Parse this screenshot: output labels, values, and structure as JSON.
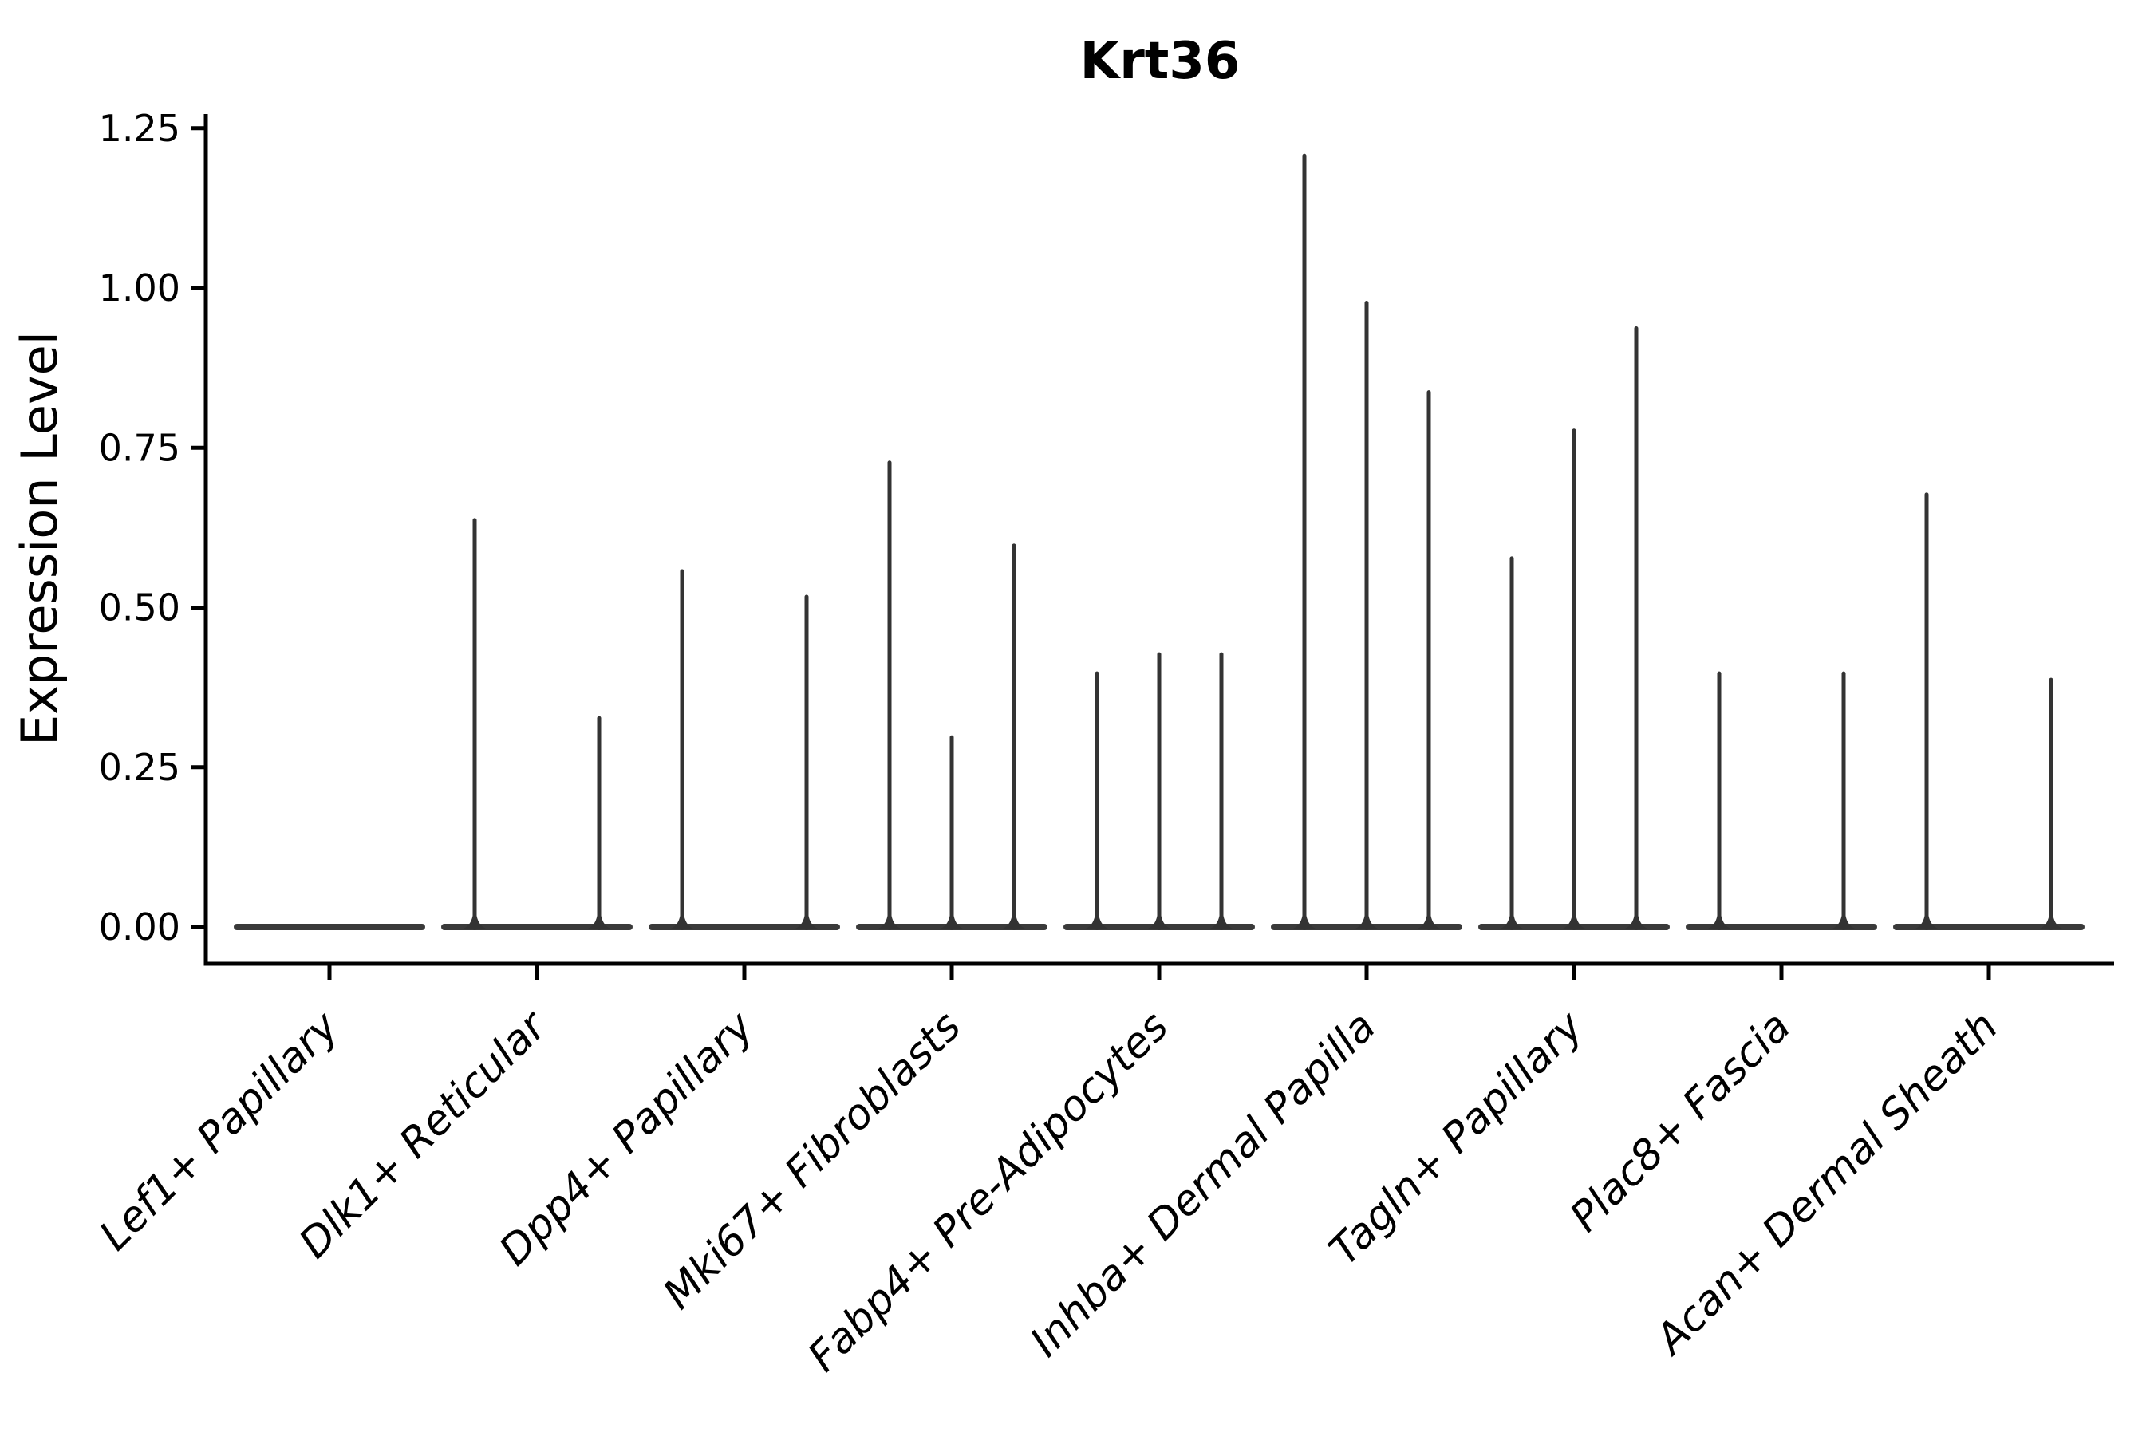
{
  "figure": {
    "title": "Krt36",
    "ylabel": "Expression Level"
  },
  "chart_data": {
    "type": "violin",
    "title": "Krt36",
    "xlabel": "",
    "ylabel": "Expression Level",
    "ylim": [
      0.0,
      1.25
    ],
    "ytick_values": [
      0.0,
      0.25,
      0.5,
      0.75,
      1.0,
      1.25
    ],
    "ytick_labels": [
      "0.00",
      "0.25",
      "0.50",
      "0.75",
      "1.00",
      "1.25"
    ],
    "grid": false,
    "legend": "none",
    "x_tick_label_rotation_deg": 45,
    "x_tick_label_style": "italic",
    "categories": [
      "Lef1+ Papillary",
      "Dlk1+ Reticular",
      "Dpp4+ Papillary",
      "Mki67+ Fibroblasts",
      "Fabp4+ Pre-Adipocytes",
      "Inhba+ Dermal Papilla",
      "Tagln+ Papillary",
      "Plac8+ Fascia",
      "Acan+ Dermal Sheath"
    ],
    "description": "Violin plot of Krt36 expression; each category shows a flat collapsed violin at 0 with up to three thin density spikes (sub-violin slots: -1 = left, 0 = center, 1 = right) reaching the listed peak expression level.",
    "violins": [
      {
        "category": "Lef1+ Papillary",
        "spikes": []
      },
      {
        "category": "Dlk1+ Reticular",
        "spikes": [
          {
            "slot": -1,
            "peak": 0.64
          },
          {
            "slot": 1,
            "peak": 0.33
          }
        ]
      },
      {
        "category": "Dpp4+ Papillary",
        "spikes": [
          {
            "slot": -1,
            "peak": 0.56
          },
          {
            "slot": 1,
            "peak": 0.52
          }
        ]
      },
      {
        "category": "Mki67+ Fibroblasts",
        "spikes": [
          {
            "slot": -1,
            "peak": 0.73
          },
          {
            "slot": 0,
            "peak": 0.3
          },
          {
            "slot": 1,
            "peak": 0.6
          }
        ]
      },
      {
        "category": "Fabp4+ Pre-Adipocytes",
        "spikes": [
          {
            "slot": -1,
            "peak": 0.4
          },
          {
            "slot": 0,
            "peak": 0.43
          },
          {
            "slot": 1,
            "peak": 0.43
          }
        ]
      },
      {
        "category": "Inhba+ Dermal Papilla",
        "spikes": [
          {
            "slot": -1,
            "peak": 1.21
          },
          {
            "slot": 0,
            "peak": 0.98
          },
          {
            "slot": 1,
            "peak": 0.84
          }
        ]
      },
      {
        "category": "Tagln+ Papillary",
        "spikes": [
          {
            "slot": -1,
            "peak": 0.58
          },
          {
            "slot": 0,
            "peak": 0.78
          },
          {
            "slot": 1,
            "peak": 0.94
          }
        ]
      },
      {
        "category": "Plac8+ Fascia",
        "spikes": [
          {
            "slot": -1,
            "peak": 0.4
          },
          {
            "slot": 1,
            "peak": 0.4
          }
        ]
      },
      {
        "category": "Acan+ Dermal Sheath",
        "spikes": [
          {
            "slot": -1,
            "peak": 0.68
          },
          {
            "slot": 1,
            "peak": 0.39
          }
        ]
      }
    ],
    "colors": {
      "violin_body": "#3a3a3a",
      "spike": "#333333",
      "axis": "#000000",
      "text": "#000000",
      "background": "#ffffff"
    }
  }
}
